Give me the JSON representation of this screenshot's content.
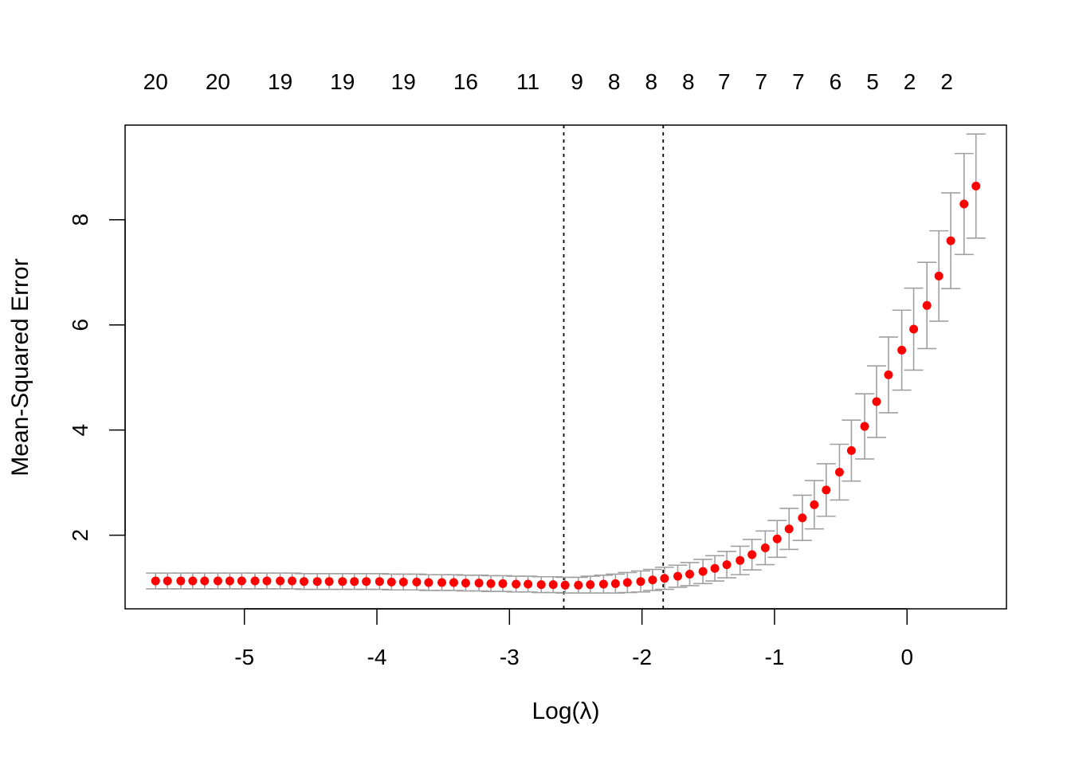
{
  "chart_data": {
    "type": "scatter",
    "title": "",
    "xlabel": "Log(λ)",
    "ylabel": "Mean-Squared Error",
    "xlim": [
      -5.9,
      0.75
    ],
    "ylim": [
      0.6,
      9.8
    ],
    "x_ticks": [
      -5,
      -4,
      -3,
      -2,
      -1,
      0
    ],
    "x_tick_labels": [
      "-5",
      "-4",
      "-3",
      "-2",
      "-1",
      "0"
    ],
    "y_ticks": [
      2,
      4,
      6,
      8
    ],
    "y_tick_labels": [
      "2",
      "4",
      "6",
      "8"
    ],
    "top_axis": {
      "x": [
        -5.67,
        -5.2,
        -4.73,
        -4.26,
        -3.8,
        -3.33,
        -2.86,
        -2.49,
        -2.21,
        -1.93,
        -1.65,
        -1.38,
        -1.1,
        -0.82,
        -0.54,
        -0.26,
        0.02,
        0.3
      ],
      "labels": [
        "20",
        "20",
        "19",
        "19",
        "19",
        "16",
        "11",
        "9",
        "8",
        "8",
        "8",
        "7",
        "7",
        "7",
        "6",
        "5",
        "2",
        "2"
      ]
    },
    "vlines": [
      -2.59,
      -1.84
    ],
    "grid": false,
    "legend": "none",
    "colors": {
      "points": "#ff0000",
      "error_bars": "#a0a0a0",
      "vlines": "#000000"
    },
    "series": [
      {
        "x": [
          -5.67,
          -5.58,
          -5.48,
          -5.39,
          -5.3,
          -5.2,
          -5.11,
          -5.02,
          -4.92,
          -4.83,
          -4.73,
          -4.64,
          -4.55,
          -4.45,
          -4.36,
          -4.26,
          -4.17,
          -4.08,
          -3.98,
          -3.89,
          -3.8,
          -3.7,
          -3.61,
          -3.51,
          -3.42,
          -3.33,
          -3.23,
          -3.14,
          -3.05,
          -2.95,
          -2.86,
          -2.76,
          -2.67,
          -2.58,
          -2.48,
          -2.39,
          -2.29,
          -2.2,
          -2.11,
          -2.01,
          -1.92,
          -1.83,
          -1.73,
          -1.64,
          -1.54,
          -1.45,
          -1.36,
          -1.26,
          -1.17,
          -1.07,
          -0.98,
          -0.89,
          -0.79,
          -0.7,
          -0.61,
          -0.51,
          -0.42,
          -0.32,
          -0.23,
          -0.14,
          -0.04,
          0.05,
          0.15,
          0.24,
          0.33,
          0.43,
          0.52
        ],
        "y": [
          1.13,
          1.13,
          1.13,
          1.13,
          1.13,
          1.13,
          1.13,
          1.13,
          1.13,
          1.13,
          1.13,
          1.13,
          1.12,
          1.12,
          1.12,
          1.12,
          1.12,
          1.12,
          1.12,
          1.11,
          1.11,
          1.11,
          1.1,
          1.1,
          1.1,
          1.09,
          1.09,
          1.08,
          1.08,
          1.07,
          1.07,
          1.06,
          1.06,
          1.05,
          1.05,
          1.06,
          1.07,
          1.08,
          1.1,
          1.12,
          1.15,
          1.18,
          1.22,
          1.26,
          1.31,
          1.37,
          1.44,
          1.52,
          1.63,
          1.76,
          1.93,
          2.12,
          2.33,
          2.58,
          2.86,
          3.2,
          3.61,
          4.07,
          4.54,
          5.05,
          5.52,
          5.92,
          6.37,
          6.93,
          7.6,
          8.3,
          8.64
        ],
        "err": [
          0.15,
          0.15,
          0.15,
          0.15,
          0.15,
          0.15,
          0.15,
          0.15,
          0.15,
          0.15,
          0.15,
          0.15,
          0.15,
          0.15,
          0.15,
          0.15,
          0.15,
          0.15,
          0.15,
          0.15,
          0.15,
          0.15,
          0.15,
          0.15,
          0.15,
          0.15,
          0.15,
          0.15,
          0.15,
          0.15,
          0.15,
          0.15,
          0.15,
          0.15,
          0.15,
          0.16,
          0.17,
          0.18,
          0.19,
          0.2,
          0.2,
          0.21,
          0.21,
          0.22,
          0.23,
          0.24,
          0.25,
          0.27,
          0.29,
          0.32,
          0.35,
          0.39,
          0.43,
          0.46,
          0.5,
          0.53,
          0.58,
          0.62,
          0.68,
          0.72,
          0.76,
          0.78,
          0.82,
          0.86,
          0.91,
          0.96,
          0.99
        ]
      }
    ]
  }
}
